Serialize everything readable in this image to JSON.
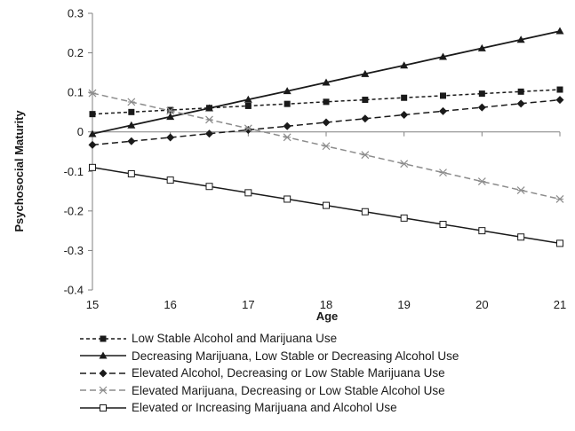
{
  "chart_data": {
    "type": "line",
    "title": "",
    "xlabel": "Age",
    "ylabel": "Psychosocial Maturity",
    "xlim": [
      15,
      21
    ],
    "ylim": [
      -0.4,
      0.3
    ],
    "xticks": [
      15,
      16,
      17,
      18,
      19,
      20,
      21
    ],
    "yticks": [
      "0.3",
      "0.2",
      "0.1",
      "0",
      "-0.1",
      "-0.2",
      "-0.3",
      "-0.4"
    ],
    "x": [
      15,
      15.5,
      16,
      16.5,
      17,
      17.5,
      18,
      18.5,
      19,
      19.5,
      20,
      20.5,
      21
    ],
    "grid": false,
    "legend_position": "bottom",
    "series": [
      {
        "name": "Low Stable Alcohol and Marijuana Use",
        "values": [
          0.045,
          0.0502,
          0.0553,
          0.0605,
          0.0657,
          0.0708,
          0.076,
          0.0812,
          0.0863,
          0.0915,
          0.0967,
          0.1018,
          0.107
        ],
        "color": "#1a1a1a",
        "dash": "4,3",
        "marker": "square-filled"
      },
      {
        "name": "Decreasing Marijuana, Low Stable or Decreasing Alcohol Use",
        "values": [
          -0.005,
          0.0167,
          0.0383,
          0.06,
          0.0817,
          0.1033,
          0.125,
          0.1467,
          0.1683,
          0.19,
          0.2117,
          0.2333,
          0.255
        ],
        "color": "#1a1a1a",
        "dash": "",
        "marker": "triangle-filled"
      },
      {
        "name": "Elevated Alcohol, Decreasing or Low Stable Marijuana Use",
        "values": [
          -0.033,
          -0.0235,
          -0.014,
          -0.0045,
          0.005,
          0.0145,
          0.024,
          0.0335,
          0.043,
          0.0525,
          0.062,
          0.0715,
          0.081
        ],
        "color": "#1a1a1a",
        "dash": "7,4",
        "marker": "diamond-filled"
      },
      {
        "name": "Elevated Marijuana, Decreasing or Low Stable Alcohol Use",
        "values": [
          0.098,
          0.0757,
          0.0533,
          0.031,
          0.0087,
          -0.0137,
          -0.036,
          -0.0583,
          -0.0807,
          -0.103,
          -0.1253,
          -0.1477,
          -0.17
        ],
        "color": "#8c8c8c",
        "dash": "7,4",
        "marker": "x"
      },
      {
        "name": "Elevated or Increasing Marijuana and Alcohol Use",
        "values": [
          -0.09,
          -0.106,
          -0.122,
          -0.138,
          -0.154,
          -0.17,
          -0.186,
          -0.202,
          -0.218,
          -0.234,
          -0.25,
          -0.266,
          -0.282
        ],
        "color": "#1a1a1a",
        "dash": "",
        "marker": "square-open"
      }
    ]
  }
}
